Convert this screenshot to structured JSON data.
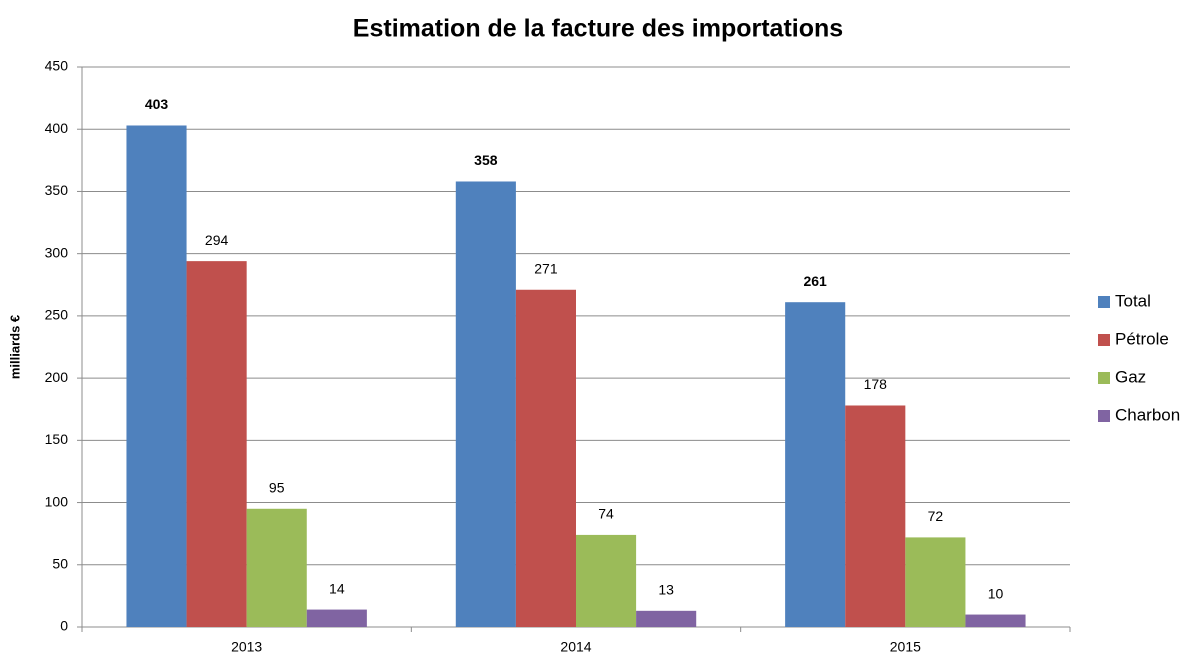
{
  "chart_data": {
    "type": "bar",
    "title": "Estimation de la facture des importations",
    "y_label": "milliards €",
    "categories": [
      "2013",
      "2014",
      "2015"
    ],
    "series": [
      {
        "name": "Total",
        "color": "#4f81bd",
        "values": [
          403,
          358,
          261
        ]
      },
      {
        "name": "Pétrole",
        "color": "#c0504d",
        "values": [
          294,
          271,
          178
        ]
      },
      {
        "name": "Gaz",
        "color": "#9bbb59",
        "values": [
          95,
          74,
          72
        ]
      },
      {
        "name": "Charbon",
        "color": "#8064a2",
        "values": [
          14,
          13,
          10
        ]
      }
    ],
    "ylim": [
      0,
      450
    ],
    "yticks": [
      0,
      50,
      100,
      150,
      200,
      250,
      300,
      350,
      400,
      450
    ],
    "grid": true,
    "legend": "right"
  }
}
